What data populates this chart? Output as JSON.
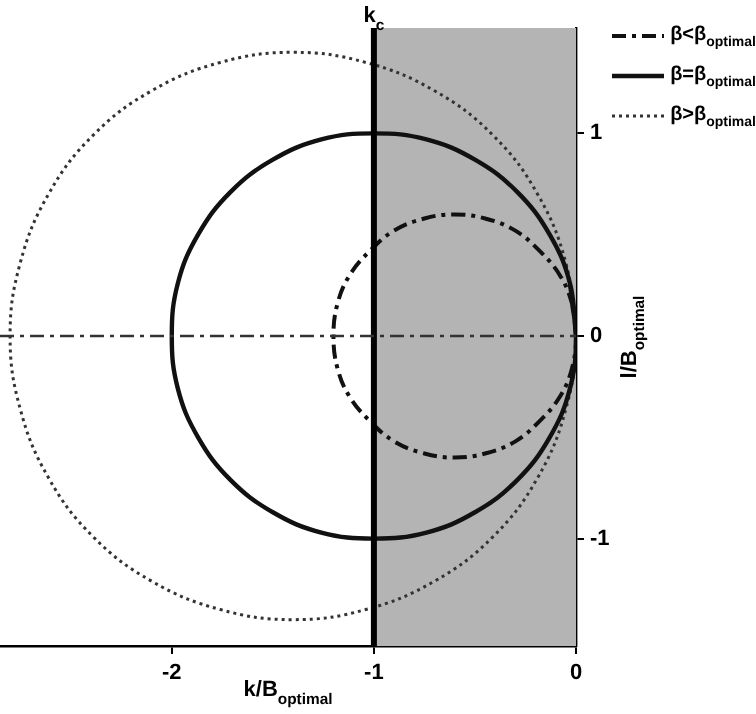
{
  "chart_data": {
    "type": "line",
    "xlabel": "k/B$_{optimal}$",
    "ylabel": "l/B$_{optimal}$",
    "xlim": [
      -2.85,
      0
    ],
    "xticks": [
      -2,
      -1,
      0
    ],
    "ylim": [
      -1.53,
      1.52
    ],
    "yticks": [
      -1,
      0,
      1
    ],
    "grid": false,
    "legend": "top right",
    "marker": "none",
    "series": [
      {
        "name": "β<β$_{optimal}$",
        "color": "#111111",
        "line_style": "dashed",
        "x": [
          0,
          -0.02,
          -0.08,
          -0.18,
          -0.3,
          -0.45,
          -0.6,
          -0.75,
          -0.9,
          -1.02,
          -1.12,
          -1.18,
          -1.2,
          -1.18,
          -1.12,
          -1.02,
          -0.9,
          -0.75,
          -0.6,
          -0.45,
          -0.3,
          -0.18,
          -0.08,
          -0.02,
          0,
          -0.02
        ],
        "values": [
          0,
          0.16,
          0.3,
          0.42,
          0.52,
          0.58,
          0.6,
          0.58,
          0.52,
          0.42,
          0.3,
          0.16,
          0,
          -0.16,
          -0.3,
          -0.42,
          -0.52,
          -0.58,
          -0.6,
          -0.58,
          -0.52,
          -0.42,
          -0.3,
          -0.16,
          0,
          0.16
        ]
      },
      {
        "name": "β=β$_{optimal}$",
        "color": "#111111",
        "line_style": "solid",
        "x": [
          0,
          -0.03,
          -0.13,
          -0.29,
          -0.5,
          -0.74,
          -1,
          -1.26,
          -1.5,
          -1.71,
          -1.87,
          -1.97,
          -2,
          -1.97,
          -1.87,
          -1.71,
          -1.5,
          -1.26,
          -1,
          -0.74,
          -0.5,
          -0.29,
          -0.13,
          -0.03,
          0,
          -0.03
        ],
        "values": [
          0,
          0.26,
          0.5,
          0.71,
          0.87,
          0.97,
          1,
          0.97,
          0.87,
          0.71,
          0.5,
          0.26,
          0,
          -0.26,
          -0.5,
          -0.71,
          -0.87,
          -0.97,
          -1,
          -0.97,
          -0.87,
          -0.71,
          -0.5,
          -0.26,
          0,
          0.26
        ]
      },
      {
        "name": "β>β$_{optimal}$",
        "color": "#333333",
        "line_style": "dotted",
        "x": [
          0,
          -0.05,
          -0.19,
          -0.41,
          -0.7,
          -1.04,
          -1.4,
          -1.76,
          -2.1,
          -2.39,
          -2.61,
          -2.75,
          -2.8,
          -2.75,
          -2.61,
          -2.39,
          -2.1,
          -1.76,
          -1.4,
          -1.04,
          -0.7,
          -0.41,
          -0.19,
          -0.05,
          0,
          -0.05
        ],
        "values": [
          0,
          0.36,
          0.7,
          0.99,
          1.21,
          1.35,
          1.4,
          1.35,
          1.21,
          0.99,
          0.7,
          0.36,
          0,
          -0.36,
          -0.7,
          -0.99,
          -1.21,
          -1.35,
          -1.4,
          -1.35,
          -1.21,
          -0.99,
          -0.7,
          -0.36,
          0,
          0.36
        ]
      }
    ],
    "ref_lines": [
      {
        "axis": "x",
        "value": -1,
        "label": "k$_{c}$",
        "color": "#000000",
        "line_style": "solid"
      },
      {
        "axis": "y",
        "value": 0,
        "color": "#333333",
        "line_style": "dashed"
      }
    ],
    "bands": [
      {
        "axis": "x",
        "from": -1,
        "to": 0,
        "color": "#b4b4b4"
      }
    ]
  }
}
